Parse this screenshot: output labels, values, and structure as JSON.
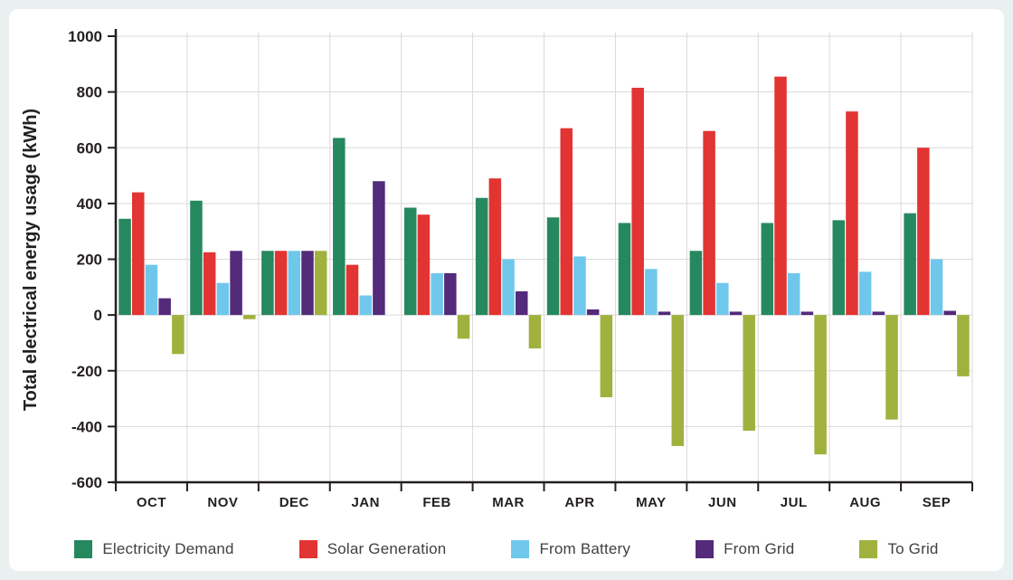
{
  "page": {
    "background_color": "#e9f0ef",
    "panel_color": "#ffffff"
  },
  "chart_data": {
    "type": "bar",
    "title": "",
    "xlabel": "",
    "ylabel": "Total electrical energy usage (kWh)",
    "ylim": [
      -600,
      1000
    ],
    "yticks": [
      1000,
      800,
      600,
      400,
      200,
      0,
      -200,
      -400,
      -600
    ],
    "grid": true,
    "legend_position": "bottom",
    "axis_color": "#231f20",
    "gridline_color": "#d9d9d9",
    "categories": [
      "OCT",
      "NOV",
      "DEC",
      "JAN",
      "FEB",
      "MAR",
      "APR",
      "MAY",
      "JUN",
      "JUL",
      "AUG",
      "SEP"
    ],
    "series": [
      {
        "name": "Electricity Demand",
        "color": "#26885f",
        "values": [
          345,
          410,
          230,
          635,
          385,
          420,
          350,
          330,
          230,
          330,
          340,
          365
        ]
      },
      {
        "name": "Solar Generation",
        "color": "#e23432",
        "values": [
          440,
          225,
          230,
          180,
          360,
          490,
          670,
          815,
          660,
          855,
          730,
          600
        ]
      },
      {
        "name": "From Battery",
        "color": "#70c7ec",
        "values": [
          180,
          115,
          230,
          70,
          150,
          200,
          210,
          165,
          115,
          150,
          155,
          200
        ]
      },
      {
        "name": "From Grid",
        "color": "#542a7b",
        "values": [
          60,
          230,
          230,
          480,
          150,
          85,
          20,
          12,
          12,
          12,
          12,
          15
        ]
      },
      {
        "name": "To Grid",
        "color": "#a1b13e",
        "values": [
          -140,
          -15,
          230,
          0,
          -85,
          -120,
          -295,
          -470,
          -415,
          -500,
          -375,
          -220
        ]
      }
    ]
  }
}
